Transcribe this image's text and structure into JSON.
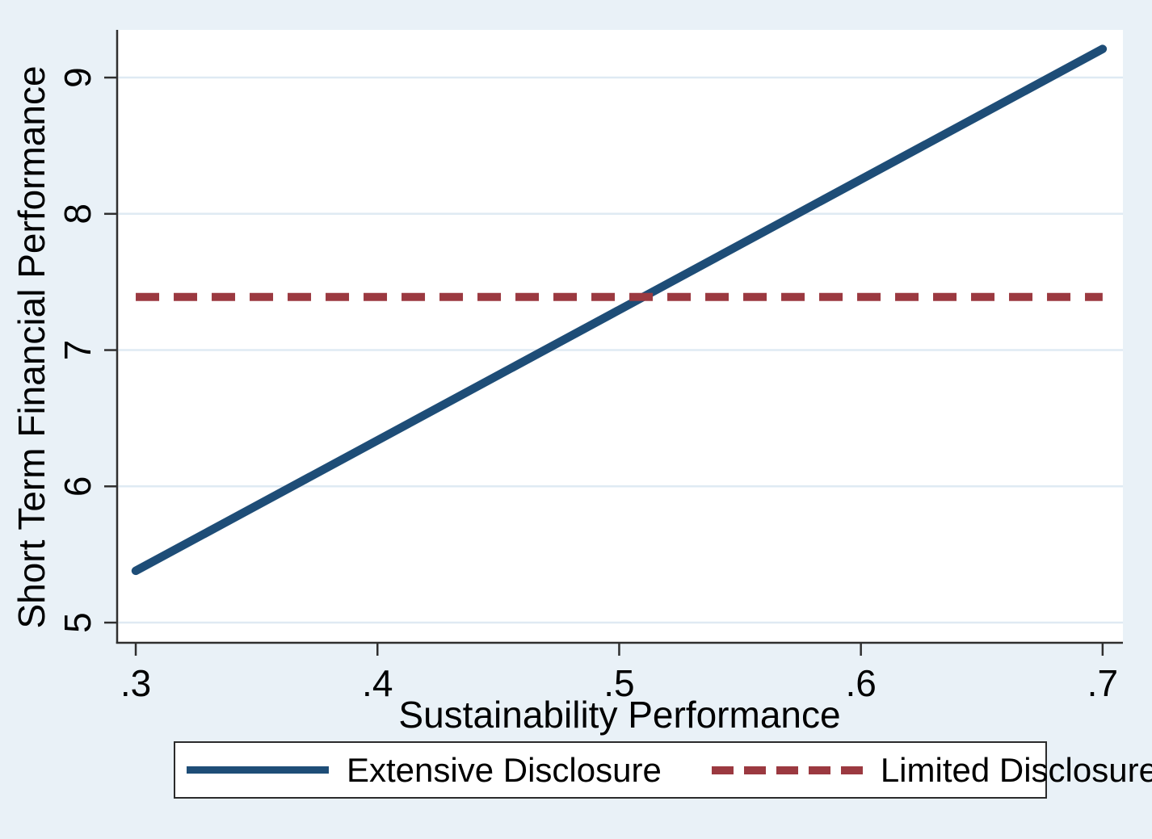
{
  "chart_data": {
    "type": "line",
    "title": "",
    "xlabel": "Sustainability Performance",
    "ylabel": "Short Term Financial Performance",
    "xlim": [
      0.2923,
      0.7084
    ],
    "ylim": [
      4.852,
      9.35
    ],
    "grid": "horizontal-only",
    "legend_position": "bottom-outside",
    "x_ticks": {
      "values": [
        0.3,
        0.4,
        0.5,
        0.6,
        0.7
      ],
      "labels": [
        ".3",
        ".4",
        ".5",
        ".6",
        ".7"
      ]
    },
    "y_ticks": {
      "values": [
        5,
        6,
        7,
        8,
        9
      ],
      "labels": [
        "5",
        "6",
        "7",
        "8",
        "9"
      ]
    },
    "series": [
      {
        "name": "Extensive Disclosure",
        "style": "solid",
        "color": "#1e4d77",
        "x": [
          0.3,
          0.7
        ],
        "y": [
          5.38,
          9.21
        ]
      },
      {
        "name": "Limited Disclosure",
        "style": "dashed",
        "color": "#9b3940",
        "x": [
          0.3,
          0.7
        ],
        "y": [
          7.39,
          7.39
        ]
      }
    ]
  },
  "colors": {
    "background": "#e9f1f7",
    "plot_background": "#ffffff",
    "gridline": "#dfeaf3",
    "axis": "#2f2f2f"
  }
}
